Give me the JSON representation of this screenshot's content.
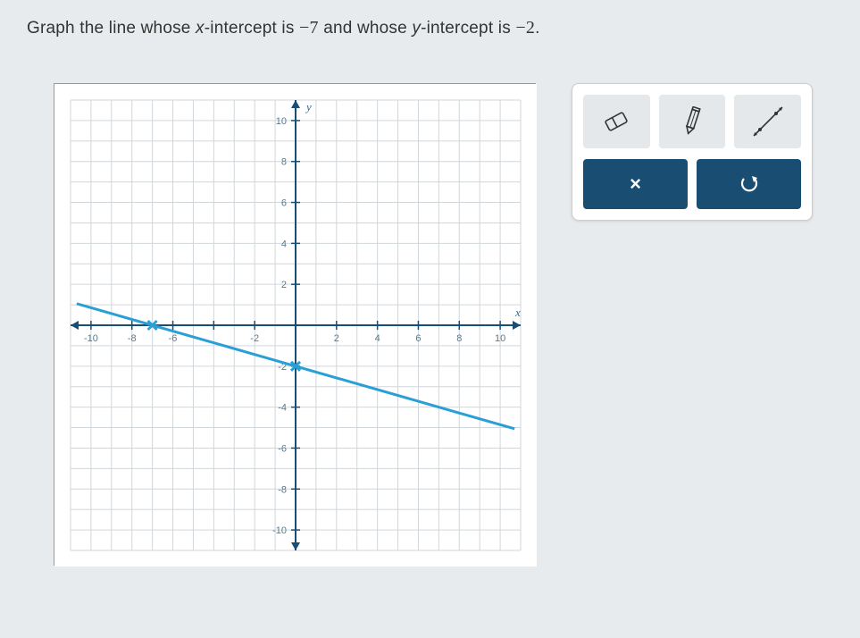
{
  "question": {
    "prefix": "Graph the line whose ",
    "xvar": "x",
    "xtext": "-intercept is ",
    "xval": "−7",
    "mid": " and whose ",
    "yvar": "y",
    "ytext": "-intercept is ",
    "yval": "−2",
    "suffix": "."
  },
  "chart": {
    "type": "line",
    "xlim": [
      -11,
      11
    ],
    "ylim": [
      -11,
      11
    ],
    "tick_step": 2,
    "tick_labels_x": [
      -10,
      -8,
      -6,
      -2,
      2,
      4,
      6,
      8,
      10
    ],
    "tick_labels_y": [
      10,
      8,
      6,
      4,
      2,
      -2,
      -4,
      -6,
      -8,
      -10
    ],
    "x_axis_label": "x",
    "y_axis_label": "y",
    "grid_color": "#d0d6da",
    "axis_color": "#1a4d72",
    "background_color": "#ffffff",
    "tick_label_color": "#5a7a8a",
    "tick_label_fontsize": 11,
    "axis_label_color": "#3a6a85",
    "line": {
      "x_intercept": -7,
      "y_intercept": -2,
      "color": "#2a9fd6",
      "width": 3,
      "points": [
        {
          "x": -7,
          "y": 0
        },
        {
          "x": 0,
          "y": -2
        }
      ],
      "point_marker": "x",
      "point_color": "#2a9fd6",
      "point_size": 8
    }
  },
  "tools": {
    "eraser": "eraser-icon",
    "pencil": "pencil-icon",
    "line": "line-tool-icon",
    "clear": "×",
    "undo": "undo-icon"
  },
  "colors": {
    "page_bg": "#e8ebed",
    "panel_bg": "#ffffff",
    "tool_light_bg": "#e5e8ea",
    "tool_dark_bg": "#1a4d72"
  }
}
